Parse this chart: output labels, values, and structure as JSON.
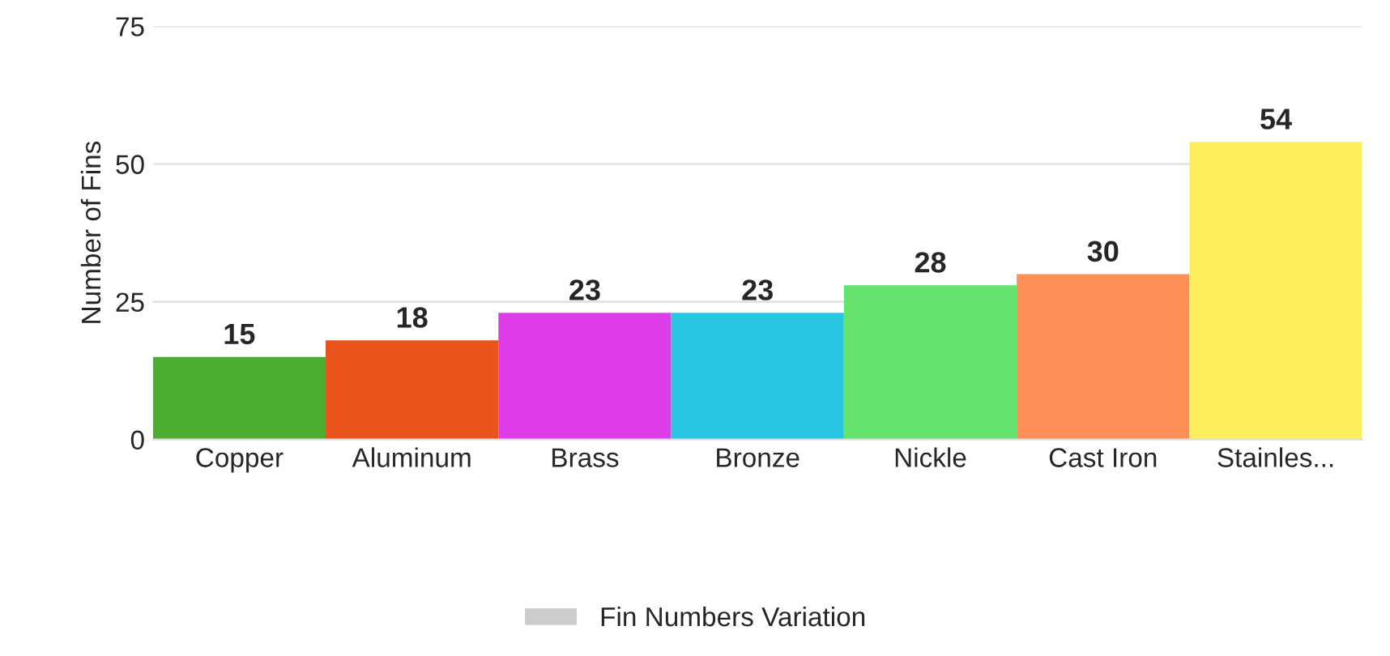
{
  "chart_data": {
    "type": "bar",
    "ylabel": "Number of Fins",
    "categories": [
      "Copper",
      "Aluminum",
      "Brass",
      "Bronze",
      "Nickle",
      "Cast Iron",
      "Stainles..."
    ],
    "series": [
      {
        "name": "Fin Numbers Variation",
        "color": "#cccccc",
        "values": [
          15,
          18,
          23,
          23,
          28,
          30,
          54
        ],
        "colors": [
          "#4cae2f",
          "#e8541c",
          "#dd3de8",
          "#29c6e3",
          "#66e36f",
          "#fd8f57",
          "#fdee5c"
        ]
      }
    ],
    "ylim": [
      0,
      75
    ],
    "yticks": [
      0,
      25,
      50,
      75
    ],
    "grid": "y",
    "legend": "bottom",
    "data_labels": true
  }
}
